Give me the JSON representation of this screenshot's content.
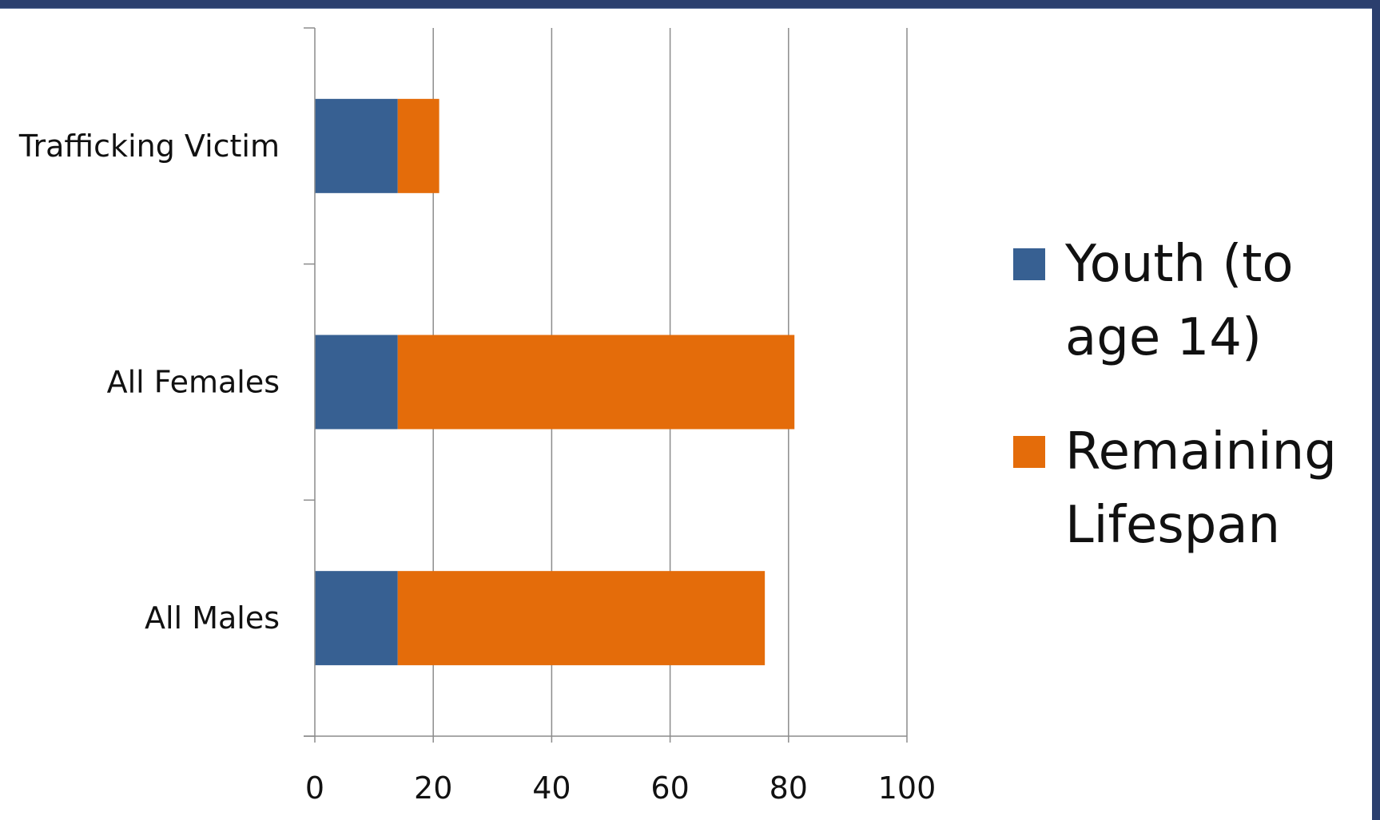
{
  "chart_data": {
    "type": "bar",
    "orientation": "horizontal",
    "stacked": true,
    "categories": [
      "Trafficking Victim",
      "All Females",
      "All Males"
    ],
    "series": [
      {
        "name": "Youth (to age 14)",
        "legend_lines": [
          "Youth (to",
          "age 14)"
        ],
        "values": [
          14,
          14,
          14
        ],
        "color": "#376092"
      },
      {
        "name": "Remaining Lifespan",
        "legend_lines": [
          "Remaining",
          "Lifespan"
        ],
        "values": [
          7,
          67,
          62
        ],
        "color": "#e46c0a"
      }
    ],
    "x_ticks": [
      "0",
      "20",
      "40",
      "60",
      "80",
      "100"
    ],
    "xlim": [
      0,
      100
    ],
    "grid": "vertical",
    "legend_position": "right"
  },
  "frame": {
    "band_color": "#2b3f6e"
  }
}
